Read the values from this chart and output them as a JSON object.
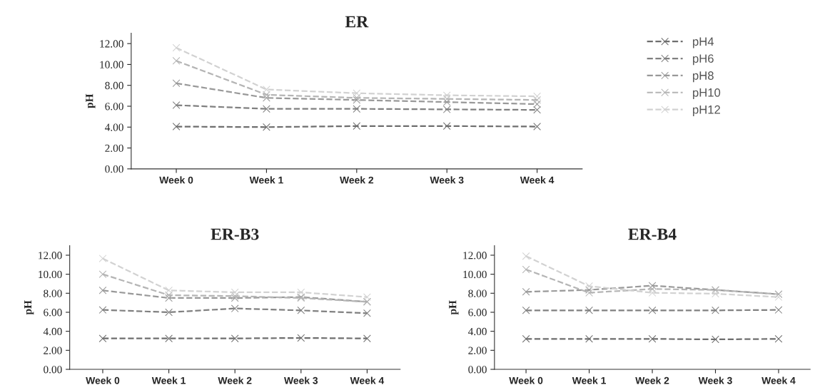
{
  "chart_data": [
    {
      "type": "line",
      "title": "ER",
      "ylabel": "pH",
      "categories": [
        "Week 0",
        "Week 1",
        "Week 2",
        "Week 3",
        "Week 4"
      ],
      "ylim": [
        0,
        13
      ],
      "yticks": [
        {
          "value": 0,
          "label": "0.00"
        },
        {
          "value": 2,
          "label": "2.00"
        },
        {
          "value": 4,
          "label": "4.00"
        },
        {
          "value": 6,
          "label": "6.00"
        },
        {
          "value": 8,
          "label": "8.00"
        },
        {
          "value": 10,
          "label": "10.00"
        },
        {
          "value": 12,
          "label": "12.00"
        }
      ],
      "marker": "cross",
      "line_style": "dashed",
      "grid": false,
      "legend": "right",
      "series": [
        {
          "name": "pH4",
          "color": "#6e6e6e",
          "values": [
            4.05,
            4.0,
            4.1,
            4.1,
            4.05
          ]
        },
        {
          "name": "pH6",
          "color": "#808080",
          "values": [
            6.1,
            5.75,
            5.75,
            5.7,
            5.65
          ]
        },
        {
          "name": "pH8",
          "color": "#999999",
          "values": [
            8.2,
            6.8,
            6.6,
            6.4,
            6.2
          ]
        },
        {
          "name": "pH10",
          "color": "#b5b5b5",
          "values": [
            10.35,
            7.1,
            6.8,
            6.7,
            6.6
          ]
        },
        {
          "name": "pH12",
          "color": "#d2d2d2",
          "values": [
            11.6,
            7.6,
            7.25,
            7.05,
            6.95
          ]
        }
      ]
    },
    {
      "type": "line",
      "title": "ER-B3",
      "ylabel": "pH",
      "categories": [
        "Week 0",
        "Week 1",
        "Week 2",
        "Week 3",
        "Week 4"
      ],
      "ylim": [
        0,
        13
      ],
      "yticks": [
        {
          "value": 0,
          "label": "0.00"
        },
        {
          "value": 2,
          "label": "2.00"
        },
        {
          "value": 4,
          "label": "4.00"
        },
        {
          "value": 6,
          "label": "6.00"
        },
        {
          "value": 8,
          "label": "8.00"
        },
        {
          "value": 10,
          "label": "10.00"
        },
        {
          "value": 12,
          "label": "12.00"
        }
      ],
      "marker": "cross",
      "line_style": "dashed",
      "grid": false,
      "series": [
        {
          "color": "#6e6e6e",
          "values": [
            3.25,
            3.25,
            3.25,
            3.3,
            3.25
          ]
        },
        {
          "color": "#808080",
          "values": [
            6.25,
            6.0,
            6.4,
            6.2,
            5.9
          ]
        },
        {
          "color": "#999999",
          "values": [
            8.3,
            7.5,
            7.5,
            7.6,
            7.1
          ]
        },
        {
          "color": "#b5b5b5",
          "values": [
            10.0,
            7.8,
            7.7,
            7.5,
            7.1
          ]
        },
        {
          "color": "#d2d2d2",
          "values": [
            11.65,
            8.3,
            8.1,
            8.1,
            7.6
          ]
        }
      ]
    },
    {
      "type": "line",
      "title": "ER-B4",
      "ylabel": "pH",
      "categories": [
        "Week 0",
        "Week 1",
        "Week 2",
        "Week 3",
        "Week 4"
      ],
      "ylim": [
        0,
        13
      ],
      "yticks": [
        {
          "value": 0,
          "label": "0.00"
        },
        {
          "value": 2,
          "label": "2.00"
        },
        {
          "value": 4,
          "label": "4.00"
        },
        {
          "value": 6,
          "label": "6.00"
        },
        {
          "value": 8,
          "label": "8.00"
        },
        {
          "value": 10,
          "label": "10.00"
        },
        {
          "value": 12,
          "label": "12.00"
        }
      ],
      "marker": "cross",
      "line_style": "dashed",
      "grid": false,
      "series": [
        {
          "color": "#6e6e6e",
          "values": [
            3.2,
            3.2,
            3.2,
            3.15,
            3.2
          ]
        },
        {
          "color": "#808080",
          "values": [
            6.2,
            6.2,
            6.2,
            6.2,
            6.25
          ]
        },
        {
          "color": "#999999",
          "values": [
            8.15,
            8.35,
            8.8,
            8.35,
            7.9
          ]
        },
        {
          "color": "#b5b5b5",
          "values": [
            10.5,
            8.05,
            8.45,
            8.35,
            7.9
          ]
        },
        {
          "color": "#d2d2d2",
          "values": [
            11.9,
            8.75,
            8.05,
            7.95,
            7.6
          ]
        }
      ]
    }
  ]
}
